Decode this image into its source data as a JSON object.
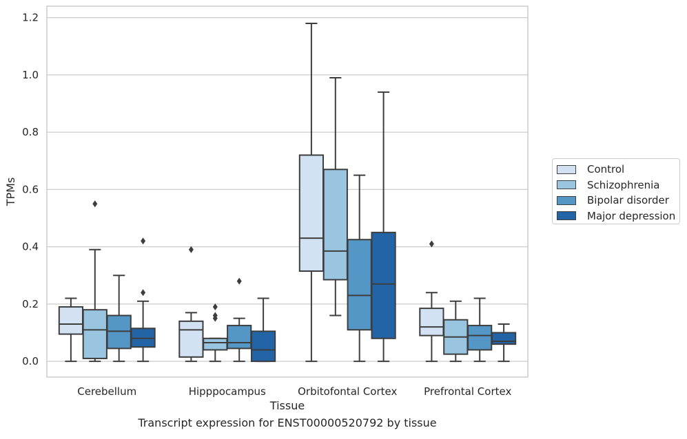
{
  "caption": "Transcript expression for ENST00000520792 by tissue",
  "chart_data": {
    "type": "box",
    "xlabel": "Tissue",
    "ylabel": "TPMs",
    "ylim": [
      -0.055,
      1.24
    ],
    "yticks": [
      "0.0",
      "0.2",
      "0.4",
      "0.6",
      "0.8",
      "1.0",
      "1.2"
    ],
    "ytick_values": [
      0.0,
      0.2,
      0.4,
      0.6,
      0.8,
      1.0,
      1.2
    ],
    "grid": "horizontal",
    "legend_position": "right",
    "categories": [
      "Cerebellum",
      "Hipppocampus",
      "Orbitofontal Cortex",
      "Prefrontal Cortex"
    ],
    "series": [
      {
        "name": "Control",
        "color": "#d2e2f2",
        "boxes": [
          {
            "whisker_low": 0.0,
            "q1": 0.095,
            "median": 0.13,
            "q3": 0.19,
            "whisker_high": 0.22,
            "outliers": []
          },
          {
            "whisker_low": 0.0,
            "q1": 0.015,
            "median": 0.11,
            "q3": 0.14,
            "whisker_high": 0.17,
            "outliers": [
              0.39
            ]
          },
          {
            "whisker_low": 0.0,
            "q1": 0.315,
            "median": 0.43,
            "q3": 0.72,
            "whisker_high": 1.18,
            "outliers": []
          },
          {
            "whisker_low": 0.0,
            "q1": 0.09,
            "median": 0.12,
            "q3": 0.185,
            "whisker_high": 0.24,
            "outliers": [
              0.41
            ]
          }
        ]
      },
      {
        "name": "Schizophrenia",
        "color": "#9ac5e0",
        "boxes": [
          {
            "whisker_low": 0.0,
            "q1": 0.01,
            "median": 0.11,
            "q3": 0.18,
            "whisker_high": 0.39,
            "outliers": [
              0.55
            ]
          },
          {
            "whisker_low": 0.0,
            "q1": 0.04,
            "median": 0.065,
            "q3": 0.08,
            "whisker_high": 0.08,
            "outliers": [
              0.19,
              0.16,
              0.15
            ]
          },
          {
            "whisker_low": 0.16,
            "q1": 0.285,
            "median": 0.385,
            "q3": 0.67,
            "whisker_high": 0.99,
            "outliers": []
          },
          {
            "whisker_low": 0.0,
            "q1": 0.025,
            "median": 0.085,
            "q3": 0.145,
            "whisker_high": 0.21,
            "outliers": []
          }
        ]
      },
      {
        "name": "Bipolar disorder",
        "color": "#5497c6",
        "boxes": [
          {
            "whisker_low": 0.0,
            "q1": 0.045,
            "median": 0.105,
            "q3": 0.16,
            "whisker_high": 0.3,
            "outliers": []
          },
          {
            "whisker_low": 0.0,
            "q1": 0.045,
            "median": 0.065,
            "q3": 0.125,
            "whisker_high": 0.15,
            "outliers": [
              0.28
            ]
          },
          {
            "whisker_low": 0.0,
            "q1": 0.11,
            "median": 0.23,
            "q3": 0.425,
            "whisker_high": 0.65,
            "outliers": []
          },
          {
            "whisker_low": 0.0,
            "q1": 0.04,
            "median": 0.09,
            "q3": 0.125,
            "whisker_high": 0.22,
            "outliers": []
          }
        ]
      },
      {
        "name": "Major depression",
        "color": "#2364a6",
        "boxes": [
          {
            "whisker_low": 0.0,
            "q1": 0.05,
            "median": 0.08,
            "q3": 0.115,
            "whisker_high": 0.21,
            "outliers": [
              0.42,
              0.24
            ]
          },
          {
            "whisker_low": 0.0,
            "q1": 0.0,
            "median": 0.04,
            "q3": 0.105,
            "whisker_high": 0.22,
            "outliers": []
          },
          {
            "whisker_low": 0.0,
            "q1": 0.08,
            "median": 0.27,
            "q3": 0.45,
            "whisker_high": 0.94,
            "outliers": []
          },
          {
            "whisker_low": 0.0,
            "q1": 0.06,
            "median": 0.07,
            "q3": 0.1,
            "whisker_high": 0.13,
            "outliers": []
          }
        ]
      }
    ]
  }
}
